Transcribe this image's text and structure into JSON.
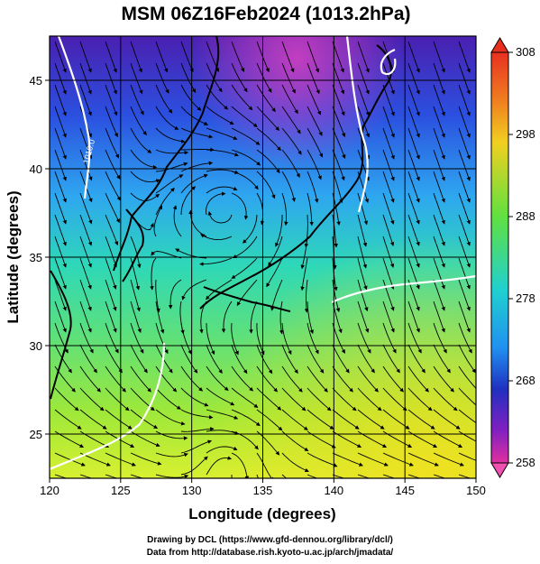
{
  "title": "MSM 06Z16Feb2024 (1013.2hPa)",
  "xlabel": "Longitude (degrees)",
  "ylabel": "Latitude  (degrees)",
  "x_ticks": [
    "120",
    "125",
    "130",
    "135",
    "140",
    "145",
    "150"
  ],
  "y_ticks": [
    "25",
    "30",
    "35",
    "40",
    "45"
  ],
  "colorbar_ticks": [
    "308",
    "298",
    "288",
    "278",
    "268",
    "258"
  ],
  "contour_label": "1010.0",
  "credit_line1": "Drawing by DCL (https://www.gfd-dennou.org/library/dcl/)",
  "credit_line2": "Data from http://database.rish.kyoto-u.ac.jp/arch/jmadata/",
  "chart_data": {
    "type": "heatmap",
    "title": "MSM 06Z16Feb2024 (1013.2hPa)",
    "xlabel": "Longitude (degrees)",
    "ylabel": "Latitude  (degrees)",
    "xlim": [
      120,
      150
    ],
    "ylim": [
      22.5,
      47.5
    ],
    "colorbar": {
      "min": 258,
      "max": 308,
      "ticks": [
        258,
        268,
        278,
        288,
        298,
        308
      ]
    },
    "grid": true,
    "overlays": [
      "streamlines",
      "contours",
      "coastlines"
    ]
  },
  "colors": {
    "grid": "#000000",
    "contour": "#ffffff",
    "coast": "#000000"
  }
}
